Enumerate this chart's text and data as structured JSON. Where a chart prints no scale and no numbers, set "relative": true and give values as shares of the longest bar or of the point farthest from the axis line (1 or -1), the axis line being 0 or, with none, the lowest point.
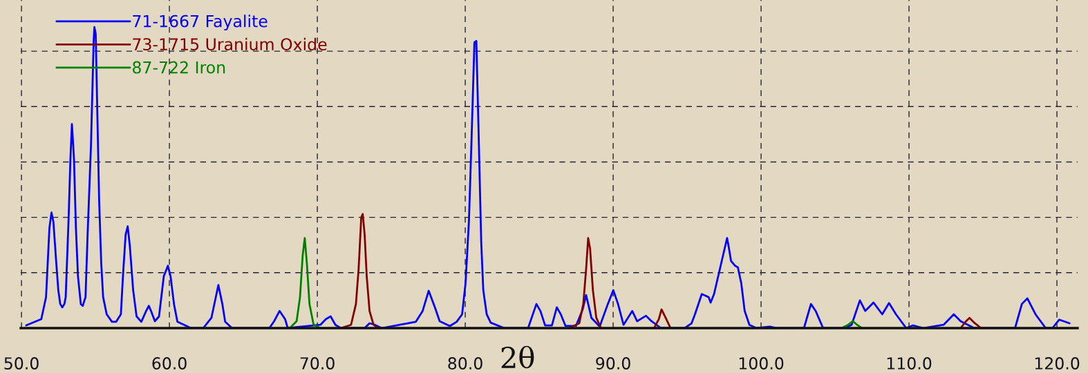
{
  "chart_data": {
    "type": "line",
    "relative": true,
    "xlabel": "2θ",
    "xlim": [
      49.95,
      121.4
    ],
    "xticks": [
      {
        "value": 50,
        "label": "50.0"
      },
      {
        "value": 60,
        "label": "60.0"
      },
      {
        "value": 70,
        "label": "70.0"
      },
      {
        "value": 80,
        "label": "80.0"
      },
      {
        "value": 90,
        "label": "90.0"
      },
      {
        "value": 100,
        "label": "100.0"
      },
      {
        "value": 110,
        "label": "110.0"
      },
      {
        "value": 120,
        "label": "120.0"
      }
    ],
    "grid": true,
    "legend": "top left",
    "tick_labels": "x",
    "line_style": "solid",
    "marker": "none",
    "series": [
      {
        "name": "71-1667 Fayalite",
        "color": "#0000ff",
        "x": [
          50.32,
          51.34,
          51.66,
          51.89,
          52.03,
          52.16,
          52.35,
          52.49,
          52.62,
          52.76,
          52.9,
          52.99,
          53.18,
          53.31,
          53.41,
          53.55,
          53.68,
          53.82,
          54.01,
          54.14,
          54.33,
          54.47,
          54.7,
          54.88,
          54.93,
          55.02,
          55.11,
          55.25,
          55.39,
          55.52,
          55.76,
          56.12,
          56.4,
          56.72,
          56.86,
          57.04,
          57.18,
          57.32,
          57.55,
          57.78,
          58.1,
          58.43,
          58.61,
          58.79,
          59.02,
          59.3,
          59.62,
          59.9,
          60.08,
          60.31,
          60.54,
          61.46,
          62.29,
          62.84,
          63.31,
          63.58,
          63.77,
          64.23,
          66.76,
          67.08,
          67.45,
          67.82,
          68.0,
          70.21,
          70.58,
          70.9,
          71.22,
          71.59,
          73.2,
          73.53,
          73.89,
          74.35,
          76.66,
          77.12,
          77.53,
          77.95,
          78.27,
          78.96,
          79.42,
          79.79,
          80.02,
          80.25,
          80.43,
          80.62,
          80.75,
          80.89,
          81.08,
          81.22,
          81.45,
          81.72,
          82.64,
          84.25,
          84.81,
          85.08,
          85.4,
          85.86,
          86.19,
          86.46,
          86.78,
          87.48,
          87.94,
          88.17,
          88.53,
          89.09,
          89.64,
          90.01,
          90.33,
          90.7,
          91.29,
          91.62,
          92.22,
          92.59,
          93.23,
          94.84,
          95.3,
          95.53,
          95.99,
          96.45,
          96.59,
          96.82,
          97.7,
          97.79,
          97.97,
          98.25,
          98.43,
          98.66,
          98.89,
          99.21,
          99.68,
          100.6,
          101.06,
          102.9,
          103.37,
          103.69,
          104.19,
          105.66,
          106.12,
          106.68,
          107.04,
          107.6,
          108.19,
          108.65,
          109.12,
          109.81,
          110.27,
          110.96,
          112.34,
          113.03,
          113.49,
          114.41,
          117.17,
          117.63,
          118.0,
          118.55,
          119.24,
          119.7,
          120.15,
          120.85
        ],
        "values": [
          0.009,
          0.03,
          0.103,
          0.333,
          0.384,
          0.352,
          0.218,
          0.126,
          0.08,
          0.069,
          0.08,
          0.103,
          0.356,
          0.563,
          0.678,
          0.563,
          0.333,
          0.172,
          0.08,
          0.074,
          0.103,
          0.31,
          0.609,
          0.954,
          1,
          0.977,
          0.759,
          0.425,
          0.218,
          0.103,
          0.046,
          0.021,
          0.021,
          0.046,
          0.172,
          0.31,
          0.338,
          0.276,
          0.126,
          0.039,
          0.021,
          0.057,
          0.074,
          0.053,
          0.023,
          0.039,
          0.172,
          0.207,
          0.172,
          0.08,
          0.021,
          0,
          0,
          0.034,
          0.143,
          0.08,
          0.021,
          0,
          0,
          0.023,
          0.057,
          0.03,
          0,
          0.011,
          0.03,
          0.039,
          0.011,
          0,
          0,
          0.016,
          0.011,
          0,
          0.021,
          0.057,
          0.124,
          0.069,
          0.023,
          0.007,
          0.021,
          0.046,
          0.149,
          0.356,
          0.632,
          0.949,
          0.954,
          0.678,
          0.287,
          0.126,
          0.046,
          0.018,
          0,
          0,
          0.08,
          0.057,
          0.009,
          0.009,
          0.069,
          0.046,
          0.007,
          0.007,
          0.062,
          0.11,
          0.034,
          0.005,
          0.08,
          0.126,
          0.08,
          0.011,
          0.057,
          0.023,
          0.041,
          0.023,
          0,
          0,
          0.016,
          0.046,
          0.113,
          0.103,
          0.085,
          0.113,
          0.299,
          0.276,
          0.223,
          0.207,
          0.202,
          0.149,
          0.057,
          0.011,
          0,
          0.005,
          0,
          0,
          0.08,
          0.057,
          0,
          0,
          0.011,
          0.092,
          0.057,
          0.085,
          0.046,
          0.083,
          0.046,
          0,
          0.009,
          0,
          0.011,
          0.046,
          0.023,
          0,
          0,
          0.08,
          0.099,
          0.046,
          0,
          0,
          0.028,
          0.016
        ]
      },
      {
        "name": "73-1715 Uranium Oxide",
        "color": "#800000",
        "x": [
          71.59,
          72.28,
          72.61,
          72.79,
          72.97,
          73.07,
          73.2,
          73.34,
          73.53,
          73.8,
          74.12,
          80.0,
          87.02,
          87.71,
          87.98,
          88.17,
          88.31,
          88.44,
          88.63,
          88.86,
          89.18,
          91.0,
          92.77,
          93.09,
          93.27,
          93.55,
          93.88,
          100.0,
          113.49,
          113.86,
          114.09,
          114.41,
          114.87
        ],
        "values": [
          0,
          0.011,
          0.08,
          0.195,
          0.368,
          0.379,
          0.31,
          0.172,
          0.057,
          0.011,
          0,
          null,
          0,
          0.016,
          0.08,
          0.195,
          0.299,
          0.264,
          0.126,
          0.034,
          0,
          null,
          0,
          0.03,
          0.062,
          0.034,
          0,
          null,
          0,
          0.023,
          0.034,
          0.018,
          0
        ]
      },
      {
        "name": "87-722 Iron",
        "color": "#008000",
        "x": [
          68.14,
          68.6,
          68.83,
          69.01,
          69.15,
          69.29,
          69.47,
          69.75,
          70.21,
          90.0,
          105.43,
          105.89,
          106.21,
          106.49,
          106.81
        ],
        "values": [
          0,
          0.023,
          0.103,
          0.241,
          0.299,
          0.218,
          0.08,
          0.011,
          0,
          null,
          0,
          0.011,
          0.023,
          0.011,
          0
        ]
      }
    ]
  }
}
